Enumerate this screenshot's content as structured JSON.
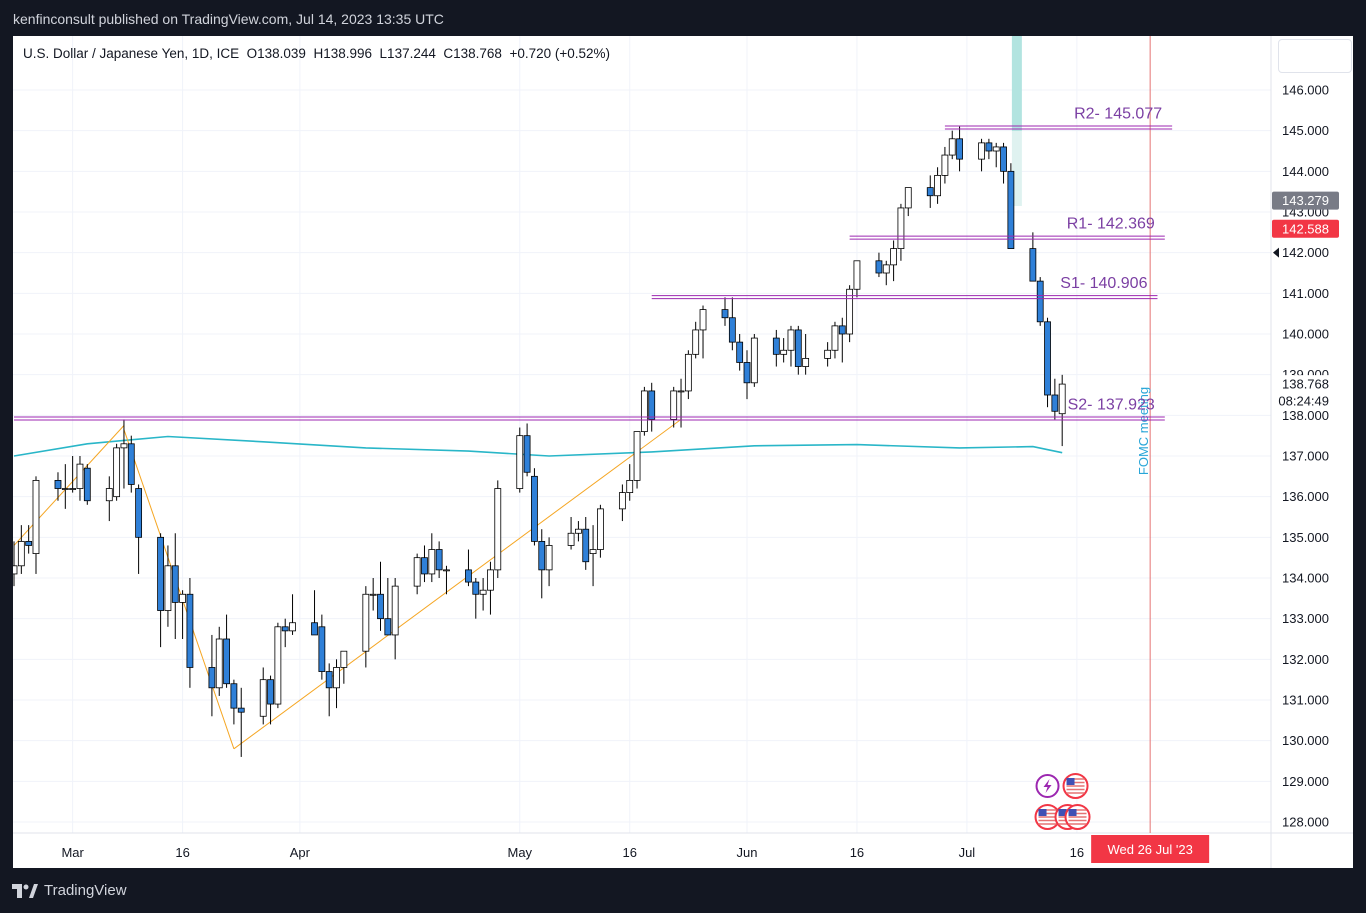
{
  "publisher_line": "kenfinconsult published on TradingView.com, Jul 14, 2023 13:35 UTC",
  "header": {
    "symbol": "U.S. Dollar / Japanese Yen, 1D, ICE",
    "open": "O138.039",
    "high": "H138.996",
    "low": "L137.244",
    "close": "C138.768",
    "change": "+0.720 (+0.52%)"
  },
  "footer": {
    "brand": "TradingView"
  },
  "colors": {
    "up_body": "#ffffff",
    "down_body": "#2f80d8",
    "wick": "#000000",
    "level_line": "#9c27b0",
    "level_text": "#7b3fa3",
    "ma": "#29b6c8",
    "trendline": "#f5a623",
    "event_line": "#e57373",
    "highlight": "#b2e4e0"
  },
  "chart_data": {
    "type": "candlestick",
    "title": "U.S. Dollar / Japanese Yen, 1D, ICE",
    "ylim": [
      127.5,
      147.0
    ],
    "y_ticks": [
      "146.000",
      "145.000",
      "144.000",
      "143.000",
      "142.000",
      "141.000",
      "140.000",
      "139.000",
      "138.000",
      "137.000",
      "136.000",
      "135.000",
      "134.000",
      "133.000",
      "132.000",
      "131.000",
      "130.000",
      "129.000",
      "128.000"
    ],
    "x_ticks": [
      "Mar",
      "16",
      "Apr",
      "May",
      "16",
      "Jun",
      "16",
      "Jul",
      "16"
    ],
    "levels": [
      {
        "label": "R2- 145.077",
        "value": 145.077
      },
      {
        "label": "R1- 142.369",
        "value": 142.369
      },
      {
        "label": "S1- 140.906",
        "value": 140.906
      },
      {
        "label": "S2- 137.923",
        "value": 137.923
      }
    ],
    "event": {
      "label": "FOMC meeting",
      "date_label": "Wed 26 Jul '23"
    },
    "price_badges": [
      {
        "value": "143.279",
        "kind": "gray"
      },
      {
        "value": "142.588",
        "kind": "red"
      },
      {
        "value": "138.768",
        "kind": "current"
      },
      {
        "value": "08:24:49",
        "kind": "countdown"
      }
    ],
    "candles": [
      {
        "date": "2023-02-21",
        "o": 134.1,
        "h": 134.9,
        "l": 133.8,
        "c": 134.3
      },
      {
        "date": "2023-02-22",
        "o": 134.3,
        "h": 135.3,
        "l": 134.1,
        "c": 134.9
      },
      {
        "date": "2023-02-23",
        "o": 134.9,
        "h": 135.3,
        "l": 134.6,
        "c": 134.8
      },
      {
        "date": "2023-02-24",
        "o": 134.6,
        "h": 136.5,
        "l": 134.1,
        "c": 136.4
      },
      {
        "date": "2023-02-27",
        "o": 136.4,
        "h": 136.6,
        "l": 135.9,
        "c": 136.2
      },
      {
        "date": "2023-02-28",
        "o": 136.2,
        "h": 136.8,
        "l": 135.7,
        "c": 136.2
      },
      {
        "date": "2023-03-01",
        "o": 136.2,
        "h": 137.0,
        "l": 136.1,
        "c": 136.2
      },
      {
        "date": "2023-03-02",
        "o": 136.2,
        "h": 137.0,
        "l": 135.9,
        "c": 136.8
      },
      {
        "date": "2023-03-03",
        "o": 136.7,
        "h": 136.8,
        "l": 135.8,
        "c": 135.9
      },
      {
        "date": "2023-03-06",
        "o": 135.9,
        "h": 136.5,
        "l": 135.4,
        "c": 136.2
      },
      {
        "date": "2023-03-07",
        "o": 136.0,
        "h": 137.3,
        "l": 135.9,
        "c": 137.2
      },
      {
        "date": "2023-03-08",
        "o": 137.2,
        "h": 137.9,
        "l": 136.2,
        "c": 137.3
      },
      {
        "date": "2023-03-09",
        "o": 137.3,
        "h": 137.5,
        "l": 136.1,
        "c": 136.3
      },
      {
        "date": "2023-03-10",
        "o": 136.2,
        "h": 136.3,
        "l": 134.1,
        "c": 135.0
      },
      {
        "date": "2023-03-13",
        "o": 135.0,
        "h": 135.1,
        "l": 132.3,
        "c": 133.2
      },
      {
        "date": "2023-03-14",
        "o": 133.2,
        "h": 134.8,
        "l": 132.8,
        "c": 134.3
      },
      {
        "date": "2023-03-15",
        "o": 134.3,
        "h": 135.1,
        "l": 132.5,
        "c": 133.4
      },
      {
        "date": "2023-03-16",
        "o": 133.4,
        "h": 133.7,
        "l": 132.5,
        "c": 133.6
      },
      {
        "date": "2023-03-17",
        "o": 133.6,
        "h": 134.0,
        "l": 131.3,
        "c": 131.8
      },
      {
        "date": "2023-03-20",
        "o": 131.8,
        "h": 132.6,
        "l": 130.6,
        "c": 131.3
      },
      {
        "date": "2023-03-21",
        "o": 131.3,
        "h": 132.8,
        "l": 131.1,
        "c": 132.5
      },
      {
        "date": "2023-03-22",
        "o": 132.5,
        "h": 133.1,
        "l": 131.3,
        "c": 131.4
      },
      {
        "date": "2023-03-23",
        "o": 131.4,
        "h": 131.5,
        "l": 130.4,
        "c": 130.8
      },
      {
        "date": "2023-03-24",
        "o": 130.8,
        "h": 131.3,
        "l": 129.6,
        "c": 130.7
      },
      {
        "date": "2023-03-27",
        "o": 130.6,
        "h": 131.8,
        "l": 130.4,
        "c": 131.5
      },
      {
        "date": "2023-03-28",
        "o": 131.5,
        "h": 131.6,
        "l": 130.4,
        "c": 130.9
      },
      {
        "date": "2023-03-29",
        "o": 130.9,
        "h": 132.9,
        "l": 130.8,
        "c": 132.8
      },
      {
        "date": "2023-03-30",
        "o": 132.8,
        "h": 133.0,
        "l": 132.3,
        "c": 132.7
      },
      {
        "date": "2023-03-31",
        "o": 132.7,
        "h": 133.6,
        "l": 132.6,
        "c": 132.9
      },
      {
        "date": "2023-04-03",
        "o": 132.9,
        "h": 133.7,
        "l": 132.6,
        "c": 132.6
      },
      {
        "date": "2023-04-04",
        "o": 132.8,
        "h": 133.1,
        "l": 131.5,
        "c": 131.7
      },
      {
        "date": "2023-04-05",
        "o": 131.7,
        "h": 131.9,
        "l": 130.6,
        "c": 131.3
      },
      {
        "date": "2023-04-06",
        "o": 131.3,
        "h": 132.0,
        "l": 130.8,
        "c": 131.8
      },
      {
        "date": "2023-04-07",
        "o": 131.8,
        "h": 132.2,
        "l": 131.4,
        "c": 132.2
      },
      {
        "date": "2023-04-10",
        "o": 132.2,
        "h": 133.8,
        "l": 131.8,
        "c": 133.6
      },
      {
        "date": "2023-04-11",
        "o": 133.6,
        "h": 134.0,
        "l": 133.2,
        "c": 133.6
      },
      {
        "date": "2023-04-12",
        "o": 133.6,
        "h": 134.4,
        "l": 132.7,
        "c": 133.0
      },
      {
        "date": "2023-04-13",
        "o": 133.0,
        "h": 134.0,
        "l": 132.6,
        "c": 132.6
      },
      {
        "date": "2023-04-14",
        "o": 132.6,
        "h": 134.0,
        "l": 132.0,
        "c": 133.8
      },
      {
        "date": "2023-04-17",
        "o": 133.8,
        "h": 134.6,
        "l": 133.6,
        "c": 134.5
      },
      {
        "date": "2023-04-18",
        "o": 134.5,
        "h": 134.8,
        "l": 133.9,
        "c": 134.1
      },
      {
        "date": "2023-04-19",
        "o": 134.1,
        "h": 135.1,
        "l": 133.9,
        "c": 134.7
      },
      {
        "date": "2023-04-20",
        "o": 134.7,
        "h": 134.9,
        "l": 134.0,
        "c": 134.2
      },
      {
        "date": "2023-04-21",
        "o": 134.2,
        "h": 134.3,
        "l": 133.6,
        "c": 134.2
      },
      {
        "date": "2023-04-24",
        "o": 134.2,
        "h": 134.7,
        "l": 133.8,
        "c": 133.9
      },
      {
        "date": "2023-04-25",
        "o": 133.9,
        "h": 134.0,
        "l": 133.0,
        "c": 133.6
      },
      {
        "date": "2023-04-26",
        "o": 133.6,
        "h": 134.0,
        "l": 133.2,
        "c": 133.7
      },
      {
        "date": "2023-04-27",
        "o": 133.7,
        "h": 134.4,
        "l": 133.1,
        "c": 134.2
      },
      {
        "date": "2023-04-28",
        "o": 134.2,
        "h": 136.4,
        "l": 134.0,
        "c": 136.2
      },
      {
        "date": "2023-05-01",
        "o": 136.2,
        "h": 137.7,
        "l": 136.1,
        "c": 137.5
      },
      {
        "date": "2023-05-02",
        "o": 137.5,
        "h": 137.8,
        "l": 136.5,
        "c": 136.6
      },
      {
        "date": "2023-05-03",
        "o": 136.5,
        "h": 136.7,
        "l": 134.8,
        "c": 134.9
      },
      {
        "date": "2023-05-04",
        "o": 134.9,
        "h": 135.2,
        "l": 133.5,
        "c": 134.2
      },
      {
        "date": "2023-05-05",
        "o": 134.2,
        "h": 135.0,
        "l": 133.8,
        "c": 134.8
      },
      {
        "date": "2023-05-08",
        "o": 134.8,
        "h": 135.5,
        "l": 134.7,
        "c": 135.1
      },
      {
        "date": "2023-05-09",
        "o": 135.1,
        "h": 135.4,
        "l": 134.9,
        "c": 135.2
      },
      {
        "date": "2023-05-10",
        "o": 135.2,
        "h": 135.5,
        "l": 134.2,
        "c": 134.4
      },
      {
        "date": "2023-05-11",
        "o": 134.6,
        "h": 135.3,
        "l": 133.8,
        "c": 134.7
      },
      {
        "date": "2023-05-12",
        "o": 134.7,
        "h": 135.8,
        "l": 134.5,
        "c": 135.7
      },
      {
        "date": "2023-05-15",
        "o": 135.7,
        "h": 136.3,
        "l": 135.4,
        "c": 136.1
      },
      {
        "date": "2023-05-16",
        "o": 136.1,
        "h": 136.8,
        "l": 135.9,
        "c": 136.4
      },
      {
        "date": "2023-05-17",
        "o": 136.4,
        "h": 137.6,
        "l": 136.2,
        "c": 137.6
      },
      {
        "date": "2023-05-18",
        "o": 137.6,
        "h": 138.7,
        "l": 137.5,
        "c": 138.6
      },
      {
        "date": "2023-05-19",
        "o": 138.6,
        "h": 138.8,
        "l": 137.6,
        "c": 137.9
      },
      {
        "date": "2023-05-22",
        "o": 137.9,
        "h": 138.7,
        "l": 137.7,
        "c": 138.6
      },
      {
        "date": "2023-05-23",
        "o": 138.6,
        "h": 138.9,
        "l": 137.7,
        "c": 138.6
      },
      {
        "date": "2023-05-24",
        "o": 138.6,
        "h": 139.6,
        "l": 138.4,
        "c": 139.5
      },
      {
        "date": "2023-05-25",
        "o": 139.5,
        "h": 140.3,
        "l": 139.4,
        "c": 140.1
      },
      {
        "date": "2023-05-26",
        "o": 140.1,
        "h": 140.7,
        "l": 139.4,
        "c": 140.6
      },
      {
        "date": "2023-05-29",
        "o": 140.6,
        "h": 140.9,
        "l": 140.2,
        "c": 140.4
      },
      {
        "date": "2023-05-30",
        "o": 140.4,
        "h": 140.9,
        "l": 139.6,
        "c": 139.8
      },
      {
        "date": "2023-05-31",
        "o": 139.8,
        "h": 140.0,
        "l": 139.1,
        "c": 139.3
      },
      {
        "date": "2023-06-01",
        "o": 139.3,
        "h": 139.6,
        "l": 138.4,
        "c": 138.8
      },
      {
        "date": "2023-06-02",
        "o": 138.8,
        "h": 140.0,
        "l": 138.7,
        "c": 139.9
      },
      {
        "date": "2023-06-05",
        "o": 139.9,
        "h": 140.1,
        "l": 139.2,
        "c": 139.5
      },
      {
        "date": "2023-06-06",
        "o": 139.5,
        "h": 139.9,
        "l": 139.3,
        "c": 139.6
      },
      {
        "date": "2023-06-07",
        "o": 139.6,
        "h": 140.2,
        "l": 139.2,
        "c": 140.1
      },
      {
        "date": "2023-06-08",
        "o": 140.1,
        "h": 140.2,
        "l": 139.0,
        "c": 139.2
      },
      {
        "date": "2023-06-09",
        "o": 139.2,
        "h": 140.0,
        "l": 139.0,
        "c": 139.4
      },
      {
        "date": "2023-06-12",
        "o": 139.4,
        "h": 139.8,
        "l": 139.2,
        "c": 139.6
      },
      {
        "date": "2023-06-13",
        "o": 139.6,
        "h": 140.3,
        "l": 139.4,
        "c": 140.2
      },
      {
        "date": "2023-06-14",
        "o": 140.2,
        "h": 140.4,
        "l": 139.3,
        "c": 140.0
      },
      {
        "date": "2023-06-15",
        "o": 140.0,
        "h": 141.2,
        "l": 139.8,
        "c": 141.1
      },
      {
        "date": "2023-06-16",
        "o": 141.1,
        "h": 141.8,
        "l": 140.9,
        "c": 141.8
      },
      {
        "date": "2023-06-19",
        "o": 141.8,
        "h": 142.0,
        "l": 141.4,
        "c": 141.5
      },
      {
        "date": "2023-06-20",
        "o": 141.5,
        "h": 141.8,
        "l": 141.2,
        "c": 141.7
      },
      {
        "date": "2023-06-21",
        "o": 141.7,
        "h": 142.3,
        "l": 141.3,
        "c": 142.1
      },
      {
        "date": "2023-06-22",
        "o": 142.1,
        "h": 143.2,
        "l": 141.8,
        "c": 143.1
      },
      {
        "date": "2023-06-23",
        "o": 143.1,
        "h": 143.5,
        "l": 142.9,
        "c": 143.6
      },
      {
        "date": "2023-06-26",
        "o": 143.6,
        "h": 143.9,
        "l": 143.1,
        "c": 143.4
      },
      {
        "date": "2023-06-27",
        "o": 143.4,
        "h": 144.1,
        "l": 143.2,
        "c": 143.9
      },
      {
        "date": "2023-06-28",
        "o": 143.9,
        "h": 144.6,
        "l": 143.7,
        "c": 144.4
      },
      {
        "date": "2023-06-29",
        "o": 144.4,
        "h": 145.0,
        "l": 144.3,
        "c": 144.8
      },
      {
        "date": "2023-06-30",
        "o": 144.8,
        "h": 145.1,
        "l": 144.0,
        "c": 144.3
      },
      {
        "date": "2023-07-03",
        "o": 144.3,
        "h": 144.8,
        "l": 144.0,
        "c": 144.7
      },
      {
        "date": "2023-07-04",
        "o": 144.7,
        "h": 144.8,
        "l": 144.3,
        "c": 144.5
      },
      {
        "date": "2023-07-05",
        "o": 144.5,
        "h": 144.7,
        "l": 144.1,
        "c": 144.6
      },
      {
        "date": "2023-07-06",
        "o": 144.6,
        "h": 144.7,
        "l": 143.7,
        "c": 144.0
      },
      {
        "date": "2023-07-07",
        "o": 144.0,
        "h": 144.2,
        "l": 142.1,
        "c": 142.1
      },
      {
        "date": "2023-07-10",
        "o": 142.1,
        "h": 142.5,
        "l": 141.3,
        "c": 141.3
      },
      {
        "date": "2023-07-11",
        "o": 141.3,
        "h": 141.4,
        "l": 140.2,
        "c": 140.3
      },
      {
        "date": "2023-07-12",
        "o": 140.3,
        "h": 140.4,
        "l": 138.2,
        "c": 138.5
      },
      {
        "date": "2023-07-13",
        "o": 138.5,
        "h": 138.9,
        "l": 137.9,
        "c": 138.1
      },
      {
        "date": "2023-07-14",
        "o": 138.04,
        "h": 138.996,
        "l": 137.244,
        "c": 138.768
      }
    ],
    "moving_average": [
      {
        "date": "2023-02-21",
        "v": 137.0
      },
      {
        "date": "2023-03-03",
        "v": 137.3
      },
      {
        "date": "2023-03-14",
        "v": 137.48
      },
      {
        "date": "2023-03-27",
        "v": 137.35
      },
      {
        "date": "2023-04-10",
        "v": 137.2
      },
      {
        "date": "2023-04-24",
        "v": 137.12
      },
      {
        "date": "2023-05-05",
        "v": 137.0
      },
      {
        "date": "2023-05-19",
        "v": 137.1
      },
      {
        "date": "2023-06-02",
        "v": 137.25
      },
      {
        "date": "2023-06-16",
        "v": 137.28
      },
      {
        "date": "2023-06-30",
        "v": 137.2
      },
      {
        "date": "2023-07-10",
        "v": 137.23
      },
      {
        "date": "2023-07-14",
        "v": 137.08
      }
    ],
    "trendlines": [
      {
        "from": {
          "date": "2023-02-21",
          "v": 134.8
        },
        "to": {
          "date": "2023-03-08",
          "v": 137.75
        }
      },
      {
        "from": {
          "date": "2023-03-08",
          "v": 137.65
        },
        "to": {
          "date": "2023-03-23",
          "v": 129.8
        }
      },
      {
        "from": {
          "date": "2023-03-23",
          "v": 129.8
        },
        "to": {
          "date": "2023-05-23",
          "v": 137.9
        }
      }
    ]
  }
}
